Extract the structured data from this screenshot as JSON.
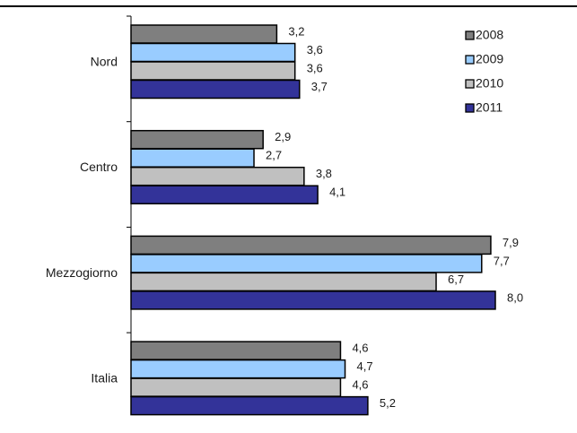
{
  "chart_data": {
    "type": "bar",
    "orientation": "horizontal",
    "title": "",
    "xlabel": "",
    "ylabel": "",
    "categories": [
      "Nord",
      "Centro",
      "Mezzogiorno",
      "Italia"
    ],
    "series": [
      {
        "name": "2008",
        "values": [
          3.2,
          2.9,
          7.9,
          4.6
        ],
        "labels": [
          "3,2",
          "2,9",
          "7,9",
          "4,6"
        ],
        "color": "#7f7f7f"
      },
      {
        "name": "2009",
        "values": [
          3.6,
          2.7,
          7.7,
          4.7
        ],
        "labels": [
          "3,6",
          "2,7",
          "7,7",
          "4,7"
        ],
        "color": "#99ccff"
      },
      {
        "name": "2010",
        "values": [
          3.6,
          3.8,
          6.7,
          4.6
        ],
        "labels": [
          "3,6",
          "3,8",
          "6,7",
          "4,6"
        ],
        "color": "#c0c0c0"
      },
      {
        "name": "2011",
        "values": [
          3.7,
          4.1,
          8.0,
          5.2
        ],
        "labels": [
          "3,7",
          "4,1",
          "8,0",
          "5,2"
        ],
        "color": "#333399"
      }
    ],
    "xlim": [
      0,
      8
    ],
    "grid": false,
    "legend": "top-right",
    "data_labels": true
  }
}
